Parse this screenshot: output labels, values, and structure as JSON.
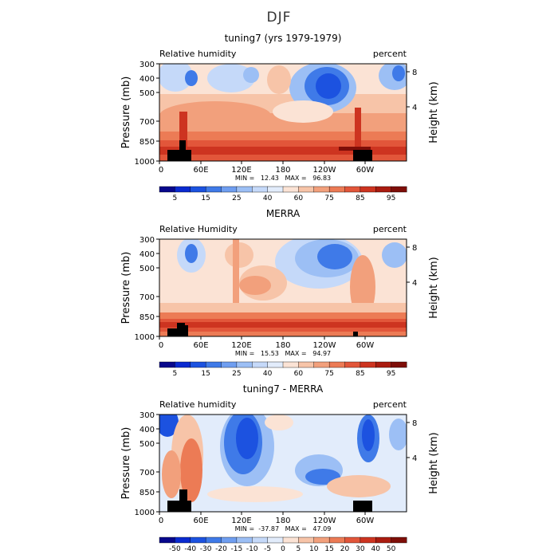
{
  "figure": {
    "suptitle": "DJF"
  },
  "chart_data": [
    {
      "type": "heatmap",
      "title": "tuning7 (yrs 1979-1979)",
      "left_label": "Relative humidity",
      "right_label": "percent",
      "ylabel": "Pressure (mb)",
      "ylabel_right": "Height (km)",
      "y_ticks": [
        "300",
        "400",
        "500",
        "700",
        "850",
        "1000"
      ],
      "y_right_ticks": [
        "8",
        "4"
      ],
      "x_ticks": [
        "0",
        "60E",
        "120E",
        "180",
        "120W",
        "60W"
      ],
      "stats": "MIN =   12.43   MAX =   96.83",
      "min": 12.43,
      "max": 96.83,
      "colorbar": {
        "labels": [
          "5",
          "15",
          "25",
          "40",
          "60",
          "75",
          "85",
          "95"
        ],
        "colors": [
          "#08088c",
          "#0a2ad0",
          "#1c52e0",
          "#3f7ae8",
          "#6f9ef0",
          "#9cbff5",
          "#c5d9f9",
          "#e2ecfb",
          "#fbe3d5",
          "#f7c4a8",
          "#f2a07c",
          "#ec7b55",
          "#e2563a",
          "#cd3420",
          "#aa1c10",
          "#7e0e08"
        ]
      }
    },
    {
      "type": "heatmap",
      "title": "MERRA",
      "left_label": "Relative Humidity",
      "right_label": "percent",
      "ylabel": "Pressure (mb)",
      "ylabel_right": "Height (km)",
      "y_ticks": [
        "300",
        "400",
        "500",
        "700",
        "850",
        "1000"
      ],
      "y_right_ticks": [
        "8",
        "4"
      ],
      "x_ticks": [
        "0",
        "60E",
        "120E",
        "180",
        "120W",
        "60W"
      ],
      "stats": "MIN =   15.53   MAX =   94.97",
      "min": 15.53,
      "max": 94.97,
      "colorbar": {
        "labels": [
          "5",
          "15",
          "25",
          "40",
          "60",
          "75",
          "85",
          "95"
        ],
        "colors": [
          "#08088c",
          "#0a2ad0",
          "#1c52e0",
          "#3f7ae8",
          "#6f9ef0",
          "#9cbff5",
          "#c5d9f9",
          "#e2ecfb",
          "#fbe3d5",
          "#f7c4a8",
          "#f2a07c",
          "#ec7b55",
          "#e2563a",
          "#cd3420",
          "#aa1c10",
          "#7e0e08"
        ]
      }
    },
    {
      "type": "heatmap",
      "title": "tuning7 - MERRA",
      "left_label": "Relative humidity",
      "right_label": "percent",
      "ylabel": "Pressure (mb)",
      "ylabel_right": "Height (km)",
      "y_ticks": [
        "300",
        "400",
        "500",
        "700",
        "850",
        "1000"
      ],
      "y_right_ticks": [
        "8",
        "4"
      ],
      "x_ticks": [
        "0",
        "60E",
        "120E",
        "180",
        "120W",
        "60W"
      ],
      "stats": "MIN =  -37.87   MAX =   47.09",
      "min": -37.87,
      "max": 47.09,
      "colorbar": {
        "labels": [
          "-50",
          "-40",
          "-30",
          "-20",
          "-15",
          "-10",
          "-5",
          "0",
          "5",
          "10",
          "15",
          "20",
          "30",
          "40",
          "50"
        ],
        "colors": [
          "#08088c",
          "#0a2ad0",
          "#1c52e0",
          "#3f7ae8",
          "#6f9ef0",
          "#9cbff5",
          "#c5d9f9",
          "#e2ecfb",
          "#fbe3d5",
          "#f7c4a8",
          "#f2a07c",
          "#ec7b55",
          "#e2563a",
          "#cd3420",
          "#aa1c10",
          "#7e0e08"
        ]
      }
    }
  ]
}
